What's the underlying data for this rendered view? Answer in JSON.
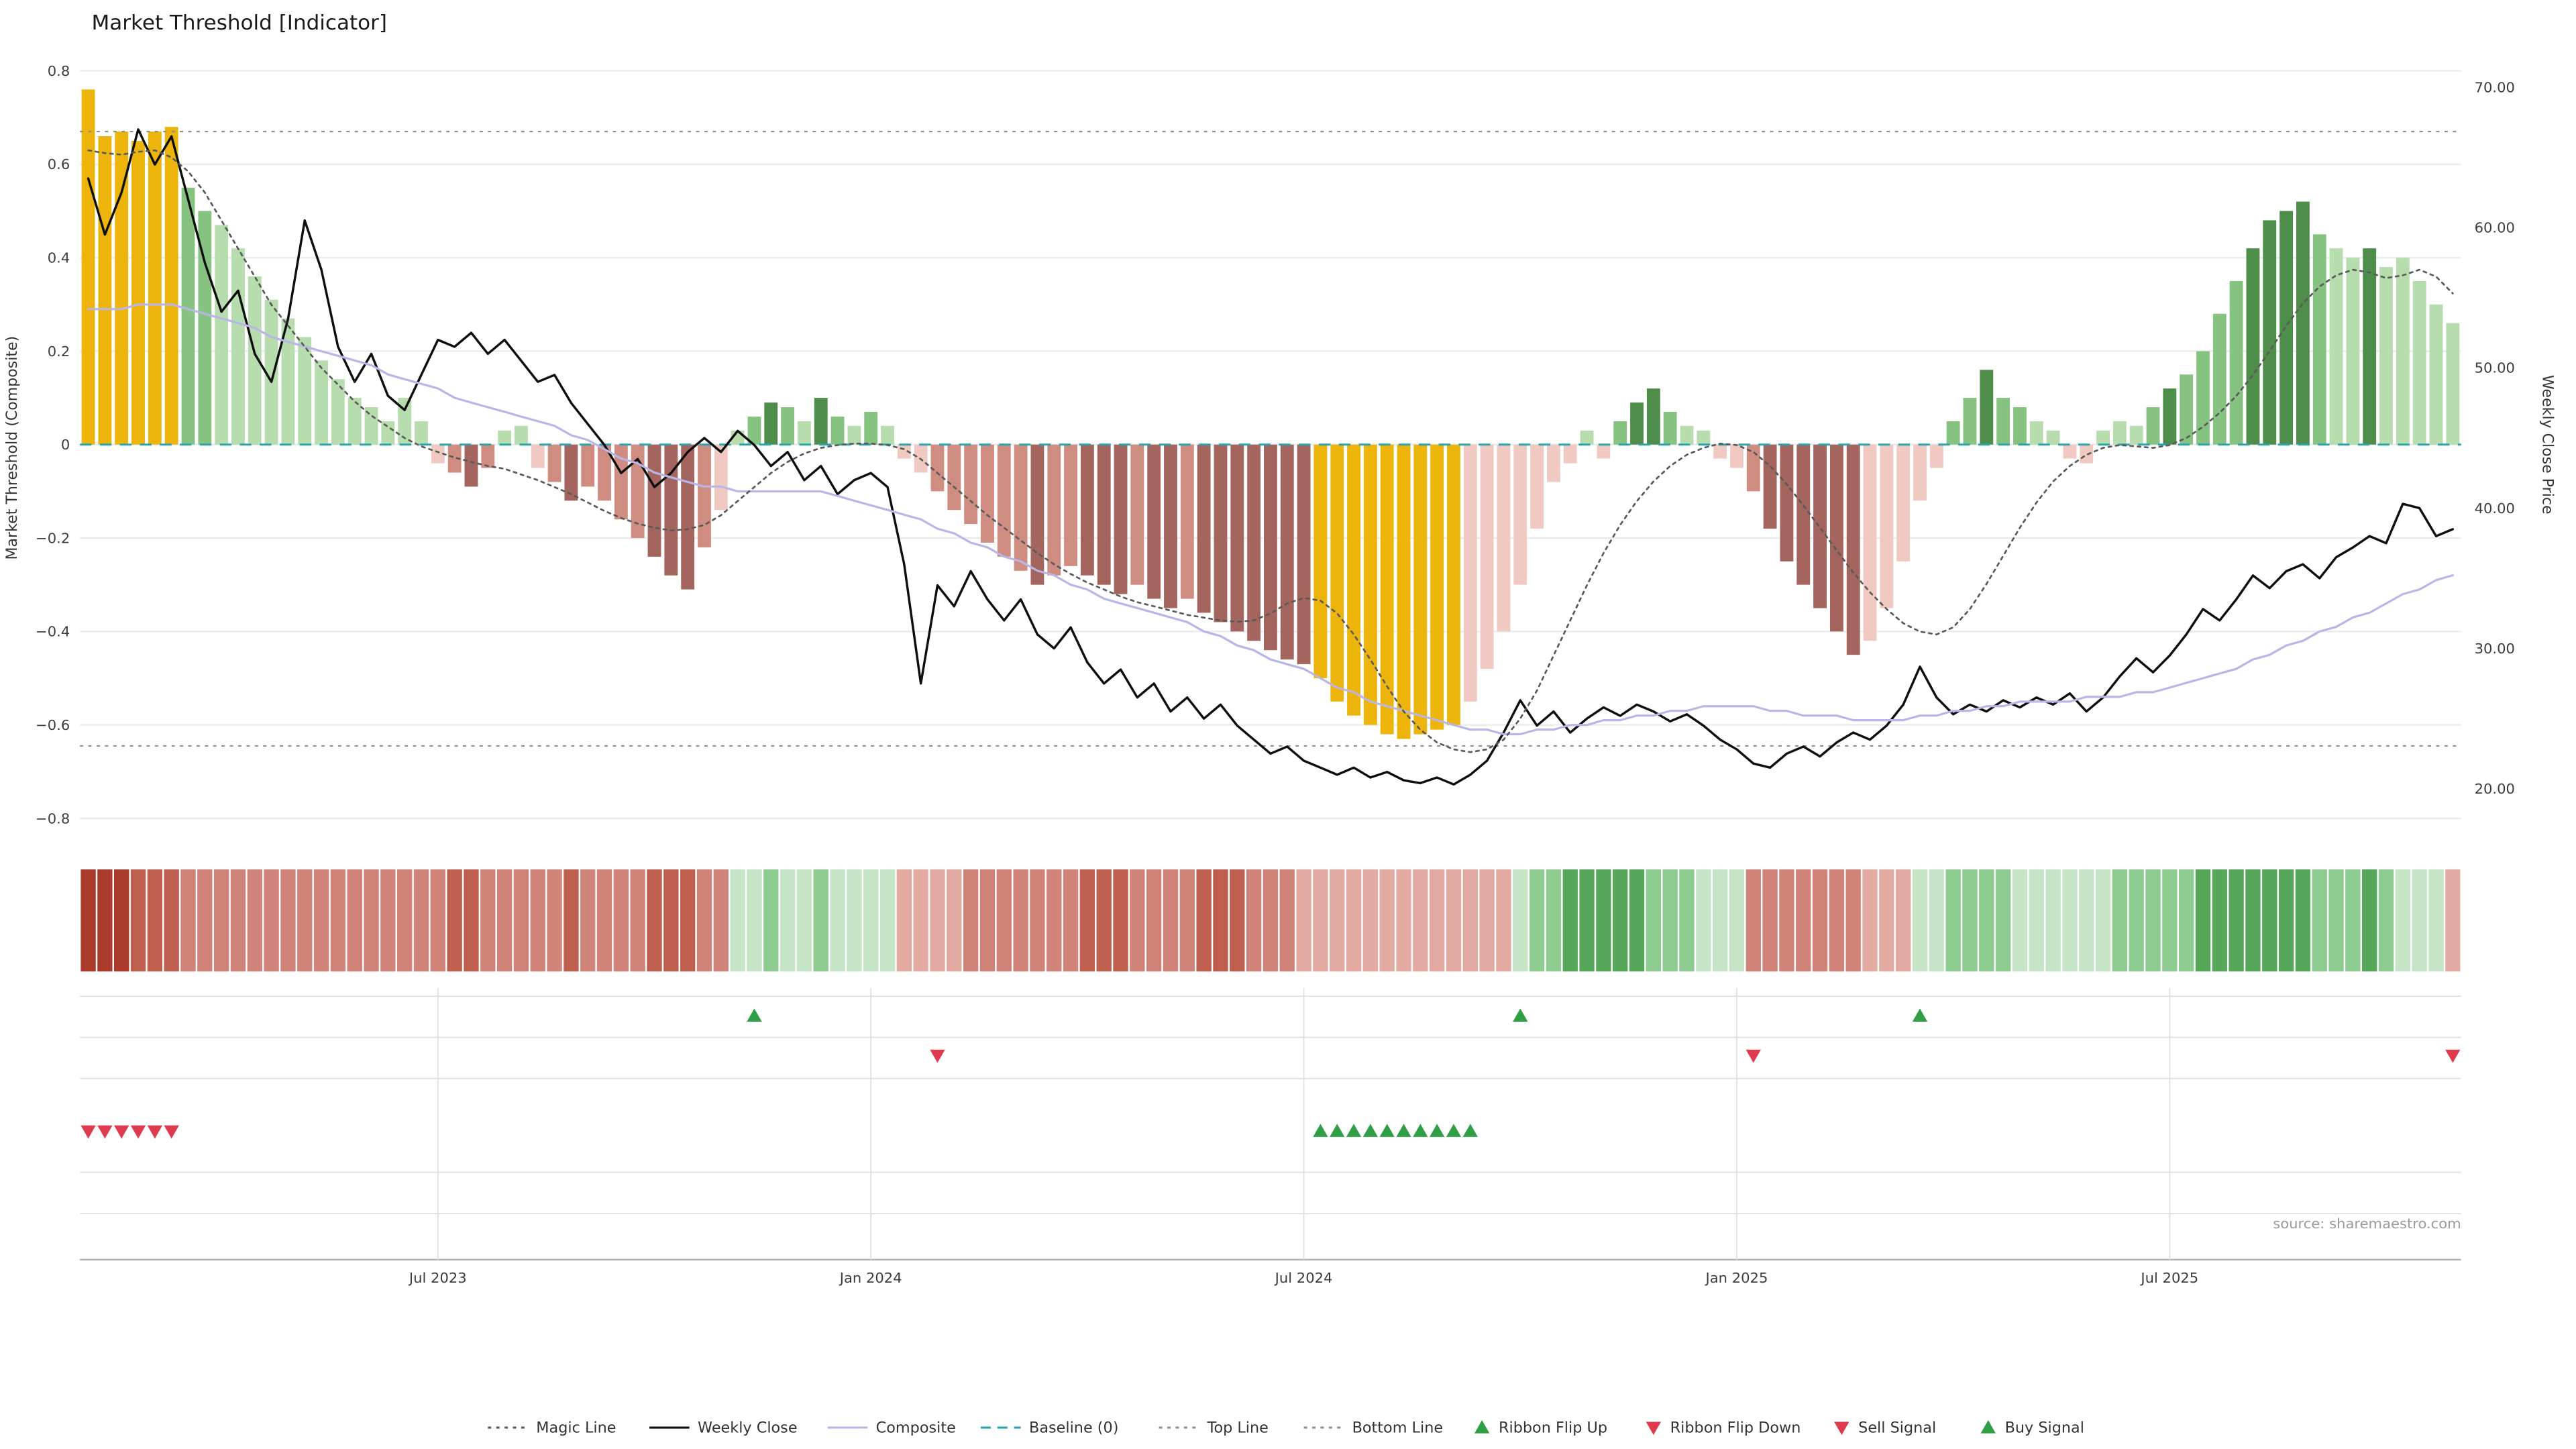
{
  "title": "Market Threshold [Indicator]",
  "source_note": "source: sharemaestro.com",
  "chart_data": {
    "type": "bar",
    "title": "Market Threshold [Indicator]",
    "left_axis": {
      "label": "Market Threshold (Composite)",
      "tick_labels": [
        "0.8",
        "0.6",
        "0.4",
        "0.2",
        "0",
        "−0.2",
        "−0.4",
        "−0.6",
        "−0.8"
      ],
      "tick_values": [
        0.8,
        0.6,
        0.4,
        0.2,
        0,
        -0.2,
        -0.4,
        -0.6,
        -0.8
      ],
      "range": [
        -0.85,
        0.82
      ]
    },
    "right_axis": {
      "label": "Weekly Close Price",
      "tick_labels": [
        "70.00",
        "60.00",
        "50.00",
        "40.00",
        "30.00",
        "20.00"
      ],
      "tick_values": [
        70,
        60,
        50,
        40,
        30,
        20
      ],
      "range": [
        18.5,
        71.5
      ]
    },
    "x_axis": {
      "tick_labels": [
        "Jul 2023",
        "Jan 2024",
        "Jul 2024",
        "Jan 2025",
        "Jul 2025"
      ],
      "tick_weeks": [
        21,
        47,
        73,
        99,
        125
      ]
    },
    "reference_lines": {
      "baseline": 0,
      "top_line": 0.67,
      "bottom_line": -0.645
    },
    "bars": {
      "values": [
        0.76,
        0.66,
        0.67,
        0.65,
        0.67,
        0.68,
        0.55,
        0.5,
        0.47,
        0.42,
        0.36,
        0.31,
        0.27,
        0.23,
        0.18,
        0.14,
        0.1,
        0.08,
        0.05,
        0.1,
        0.05,
        -0.04,
        -0.06,
        -0.09,
        -0.05,
        0.03,
        0.04,
        -0.05,
        -0.08,
        -0.12,
        -0.09,
        -0.12,
        -0.16,
        -0.2,
        -0.24,
        -0.28,
        -0.31,
        -0.22,
        -0.14,
        0.03,
        0.06,
        0.09,
        0.08,
        0.05,
        0.1,
        0.06,
        0.04,
        0.07,
        0.04,
        -0.03,
        -0.06,
        -0.1,
        -0.14,
        -0.17,
        -0.21,
        -0.24,
        -0.27,
        -0.3,
        -0.28,
        -0.26,
        -0.28,
        -0.3,
        -0.32,
        -0.3,
        -0.33,
        -0.35,
        -0.33,
        -0.36,
        -0.38,
        -0.4,
        -0.42,
        -0.44,
        -0.46,
        -0.47,
        -0.5,
        -0.55,
        -0.58,
        -0.6,
        -0.62,
        -0.63,
        -0.62,
        -0.61,
        -0.6,
        -0.55,
        -0.48,
        -0.4,
        -0.3,
        -0.18,
        -0.08,
        -0.04,
        0.03,
        -0.03,
        0.05,
        0.09,
        0.12,
        0.07,
        0.04,
        0.03,
        -0.03,
        -0.05,
        -0.1,
        -0.18,
        -0.25,
        -0.3,
        -0.35,
        -0.4,
        -0.45,
        -0.42,
        -0.35,
        -0.25,
        -0.12,
        -0.05,
        0.05,
        0.1,
        0.16,
        0.1,
        0.08,
        0.05,
        0.03,
        -0.03,
        -0.04,
        0.03,
        0.05,
        0.04,
        0.08,
        0.12,
        0.15,
        0.2,
        0.28,
        0.35,
        0.42,
        0.48,
        0.5,
        0.52,
        0.45,
        0.42,
        0.4,
        0.42,
        0.38,
        0.4,
        0.35,
        0.3,
        0.26
      ],
      "colors": [
        "gold",
        "gold",
        "gold",
        "gold",
        "gold",
        "gold",
        "g2",
        "g2",
        "g1",
        "g1",
        "g1",
        "g1",
        "g1",
        "g1",
        "g1",
        "g1",
        "g1",
        "g1",
        "g1",
        "g1",
        "g1",
        "p1",
        "p2",
        "p3",
        "p2",
        "g1",
        "g1",
        "p1",
        "p2",
        "p3",
        "p2",
        "p2",
        "p2",
        "p2",
        "p3",
        "p3",
        "p3",
        "p2",
        "p1",
        "g1",
        "g2",
        "g3",
        "g2",
        "g1",
        "g3",
        "g2",
        "g1",
        "g2",
        "g1",
        "p1",
        "p1",
        "p2",
        "p2",
        "p2",
        "p2",
        "p2",
        "p2",
        "p3",
        "p2",
        "p2",
        "p3",
        "p3",
        "p3",
        "p2",
        "p3",
        "p3",
        "p2",
        "p3",
        "p3",
        "p3",
        "p3",
        "p3",
        "p3",
        "p3",
        "gold",
        "gold",
        "gold",
        "gold",
        "gold",
        "gold",
        "gold",
        "gold",
        "gold",
        "p1",
        "p1",
        "p1",
        "p1",
        "p1",
        "p1",
        "p1",
        "g1",
        "p1",
        "g2",
        "g3",
        "g3",
        "g2",
        "g1",
        "g1",
        "p1",
        "p1",
        "p2",
        "p3",
        "p3",
        "p3",
        "p3",
        "p3",
        "p3",
        "p1",
        "p1",
        "p1",
        "p1",
        "p1",
        "g2",
        "g2",
        "g3",
        "g2",
        "g2",
        "g1",
        "g1",
        "p1",
        "p1",
        "g1",
        "g1",
        "g1",
        "g2",
        "g3",
        "g2",
        "g2",
        "g2",
        "g2",
        "g3",
        "g3",
        "g3",
        "g3",
        "g2",
        "g1",
        "g1",
        "g3",
        "g1",
        "g1",
        "g1",
        "g1",
        "g1"
      ]
    },
    "series": [
      {
        "name": "Weekly Close",
        "axis": "right",
        "color_key": "weekly",
        "values": [
          63.5,
          59.5,
          62.5,
          67,
          64.5,
          66.5,
          62,
          57.5,
          54,
          55.5,
          51,
          49,
          53.5,
          60.5,
          57,
          51.5,
          49,
          51,
          48,
          47,
          49.5,
          52,
          51.5,
          52.5,
          51,
          52,
          50.5,
          49,
          49.5,
          47.5,
          46,
          44.5,
          42.5,
          43.5,
          41.5,
          42.5,
          44,
          45,
          44,
          45.5,
          44.5,
          43,
          44,
          42,
          43,
          41,
          42,
          42.5,
          41.5,
          36,
          27.5,
          34.5,
          33,
          35.5,
          33.5,
          32,
          33.5,
          31,
          30,
          31.5,
          29,
          27.5,
          28.5,
          26.5,
          27.5,
          25.5,
          26.5,
          25,
          26,
          24.5,
          23.5,
          22.5,
          23,
          22,
          21.5,
          21,
          21.5,
          20.8,
          21.2,
          20.6,
          20.4,
          20.8,
          20.3,
          21,
          22,
          24,
          26.3,
          24.5,
          25.5,
          24,
          25,
          25.8,
          25.2,
          26,
          25.5,
          24.8,
          25.3,
          24.5,
          23.5,
          22.8,
          21.8,
          21.5,
          22.5,
          23,
          22.3,
          23.3,
          24,
          23.5,
          24.5,
          26,
          28.7,
          26.5,
          25.3,
          26,
          25.5,
          26.3,
          25.8,
          26.5,
          26,
          26.8,
          25.5,
          26.5,
          28,
          29.3,
          28.3,
          29.5,
          31,
          32.8,
          32,
          33.5,
          35.2,
          34.3,
          35.5,
          36,
          35,
          36.5,
          37.2,
          38,
          37.5,
          40.3,
          40,
          38,
          38.5
        ]
      },
      {
        "name": "Composite",
        "axis": "left",
        "color_key": "composite",
        "values": [
          0.29,
          0.29,
          0.29,
          0.3,
          0.3,
          0.3,
          0.29,
          0.28,
          0.27,
          0.26,
          0.25,
          0.23,
          0.22,
          0.21,
          0.2,
          0.19,
          0.18,
          0.17,
          0.15,
          0.14,
          0.13,
          0.12,
          0.1,
          0.09,
          0.08,
          0.07,
          0.06,
          0.05,
          0.04,
          0.02,
          0.01,
          -0.01,
          -0.03,
          -0.04,
          -0.06,
          -0.07,
          -0.08,
          -0.09,
          -0.09,
          -0.1,
          -0.1,
          -0.1,
          -0.1,
          -0.1,
          -0.1,
          -0.11,
          -0.12,
          -0.13,
          -0.14,
          -0.15,
          -0.16,
          -0.18,
          -0.19,
          -0.21,
          -0.22,
          -0.24,
          -0.25,
          -0.27,
          -0.28,
          -0.3,
          -0.31,
          -0.33,
          -0.34,
          -0.35,
          -0.36,
          -0.37,
          -0.38,
          -0.4,
          -0.41,
          -0.43,
          -0.44,
          -0.46,
          -0.47,
          -0.48,
          -0.5,
          -0.52,
          -0.53,
          -0.55,
          -0.56,
          -0.57,
          -0.58,
          -0.59,
          -0.6,
          -0.61,
          -0.61,
          -0.62,
          -0.62,
          -0.61,
          -0.61,
          -0.6,
          -0.6,
          -0.59,
          -0.59,
          -0.58,
          -0.58,
          -0.57,
          -0.57,
          -0.56,
          -0.56,
          -0.56,
          -0.56,
          -0.57,
          -0.57,
          -0.58,
          -0.58,
          -0.58,
          -0.59,
          -0.59,
          -0.59,
          -0.59,
          -0.58,
          -0.58,
          -0.57,
          -0.57,
          -0.56,
          -0.56,
          -0.55,
          -0.55,
          -0.55,
          -0.55,
          -0.54,
          -0.54,
          -0.54,
          -0.53,
          -0.53,
          -0.52,
          -0.51,
          -0.5,
          -0.49,
          -0.48,
          -0.46,
          -0.45,
          -0.43,
          -0.42,
          -0.4,
          -0.39,
          -0.37,
          -0.36,
          -0.34,
          -0.32,
          -0.31,
          -0.29,
          -0.28
        ]
      },
      {
        "name": "Magic Line",
        "axis": "right",
        "color_key": "magic",
        "values": [
          65.5,
          65.3,
          65.2,
          65.4,
          65.5,
          65,
          64,
          62.5,
          60.5,
          58.5,
          56.5,
          54.5,
          53,
          51.5,
          50,
          48.8,
          47.6,
          46.6,
          45.8,
          45,
          44.4,
          44,
          43.6,
          43.3,
          43,
          42.8,
          42.4,
          42,
          41.5,
          41,
          40.4,
          39.8,
          39.3,
          38.9,
          38.6,
          38.4,
          38.5,
          38.8,
          39.5,
          40.5,
          41.5,
          42.5,
          43.3,
          43.9,
          44.3,
          44.5,
          44.6,
          44.6,
          44.5,
          44.2,
          43.5,
          42.5,
          41.5,
          40.5,
          39.5,
          38.6,
          37.7,
          36.8,
          36,
          35.3,
          34.7,
          34.2,
          33.7,
          33.3,
          33,
          32.7,
          32.4,
          32.2,
          32,
          31.9,
          32,
          32.5,
          33.2,
          33.6,
          33.4,
          32.5,
          31,
          29.2,
          27.3,
          25.5,
          24.2,
          23.3,
          22.8,
          22.6,
          22.8,
          23.5,
          25,
          27,
          29.5,
          32,
          34.5,
          36.8,
          38.8,
          40.5,
          41.9,
          43,
          43.8,
          44.3,
          44.6,
          44.5,
          44,
          43,
          41.7,
          40.2,
          38.6,
          37,
          35.4,
          34,
          32.8,
          31.8,
          31.2,
          31,
          31.5,
          32.8,
          34.6,
          36.6,
          38.6,
          40.4,
          41.9,
          43,
          43.8,
          44.3,
          44.5,
          44.4,
          44.3,
          44.5,
          45,
          45.8,
          46.8,
          48,
          49.5,
          51.2,
          53,
          54.6,
          55.8,
          56.6,
          57,
          56.8,
          56.4,
          56.6,
          57,
          56.5,
          55.3
        ]
      }
    ],
    "ribbon": [
      "rd3",
      "rd3",
      "rd3",
      "rd2",
      "rd2",
      "rd2",
      "rd1",
      "rd1",
      "rd1",
      "rd1",
      "rd1",
      "rd1",
      "rd1",
      "rd1",
      "rd1",
      "rd1",
      "rd1",
      "rd1",
      "rd1",
      "rd1",
      "rd1",
      "rd1",
      "rd2",
      "rd2",
      "rd1",
      "rd1",
      "rd1",
      "rd1",
      "rd1",
      "rd2",
      "rd1",
      "rd1",
      "rd1",
      "rd1",
      "rd2",
      "rd2",
      "rd2",
      "rd1",
      "rd1",
      "gl",
      "gl",
      "gm",
      "gl",
      "gl",
      "gm",
      "gl",
      "gl",
      "gl",
      "gl",
      "rp",
      "rp",
      "rp",
      "rp",
      "rd1",
      "rd1",
      "rd1",
      "rd1",
      "rd1",
      "rd1",
      "rd1",
      "rd2",
      "rd2",
      "rd2",
      "rd1",
      "rd1",
      "rd1",
      "rd1",
      "rd2",
      "rd2",
      "rd2",
      "rd1",
      "rd1",
      "rd1",
      "rp",
      "rp",
      "rp",
      "rp",
      "rp",
      "rp",
      "rp",
      "rp",
      "rp",
      "rp",
      "rp",
      "rp",
      "rp",
      "gl",
      "gm",
      "gm",
      "gd",
      "gd",
      "gd",
      "gd",
      "gd",
      "gm",
      "gm",
      "gm",
      "gl",
      "gl",
      "gl",
      "rd1",
      "rd1",
      "rd1",
      "rd1",
      "rd1",
      "rd1",
      "rd1",
      "rp",
      "rp",
      "rp",
      "gl",
      "gl",
      "gm",
      "gm",
      "gm",
      "gm",
      "gl",
      "gl",
      "gl",
      "gl",
      "gl",
      "gl",
      "gm",
      "gm",
      "gm",
      "gm",
      "gm",
      "gd",
      "gd",
      "gd",
      "gd",
      "gd",
      "gd",
      "gd",
      "gm",
      "gm",
      "gm",
      "gd",
      "gm",
      "gl",
      "gl",
      "gl",
      "rp"
    ],
    "signals": {
      "ribbon_flip_up": [
        40,
        86,
        110
      ],
      "ribbon_flip_down": [
        51,
        100,
        142
      ],
      "sell": [
        0,
        1,
        2,
        3,
        4,
        5
      ],
      "buy": [
        74,
        75,
        76,
        77,
        78,
        79,
        80,
        81,
        82,
        83
      ]
    },
    "palette": {
      "gold": "#edb50c",
      "g1": "#b7dcad",
      "g2": "#86c380",
      "g3": "#4f8d4b",
      "p1": "#f0cac2",
      "p2": "#cf8d82",
      "p3": "#a3655e",
      "rd3": "#a93a2c",
      "rd2": "#bf5f4f",
      "rd1": "#d08379",
      "rp": "#e3aaa1",
      "gl": "#c6e5c7",
      "gm": "#8ecb91",
      "gd": "#57a75b",
      "baseline": "#2ba3ad",
      "magic": "#5a5a5a",
      "weekly": "#0f0f0f",
      "composite": "#b9b5e6",
      "refline": "#8f8f8f",
      "grid": "#ebebeb",
      "panel_line": "#e2e2e2",
      "axis_line": "#b5b5b5",
      "signal_green": "#2f9e44",
      "signal_red": "#e03a4e"
    },
    "legend": [
      {
        "label": "Magic Line",
        "marker": "dotted",
        "color_key": "magic"
      },
      {
        "label": "Weekly Close",
        "marker": "solid",
        "color_key": "weekly"
      },
      {
        "label": "Composite",
        "marker": "solid",
        "color_key": "composite"
      },
      {
        "label": "Baseline (0)",
        "marker": "dashed",
        "color_key": "baseline"
      },
      {
        "label": "Top Line",
        "marker": "dotted",
        "color_key": "refline"
      },
      {
        "label": "Bottom Line",
        "marker": "dotted",
        "color_key": "refline"
      },
      {
        "label": "Ribbon Flip Up",
        "marker": "tri-up",
        "color_key": "signal_green"
      },
      {
        "label": "Ribbon Flip Down",
        "marker": "tri-down",
        "color_key": "signal_red"
      },
      {
        "label": "Sell Signal",
        "marker": "tri-down",
        "color_key": "signal_red"
      },
      {
        "label": "Buy Signal",
        "marker": "tri-up",
        "color_key": "signal_green"
      }
    ]
  }
}
